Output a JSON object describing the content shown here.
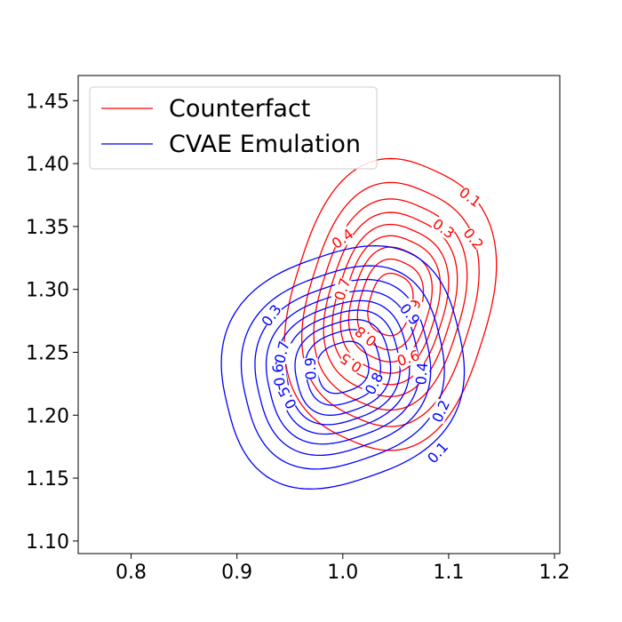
{
  "chart_data": {
    "type": "contour",
    "title": "",
    "xlabel": "",
    "ylabel": "",
    "xlim": [
      0.75,
      1.205
    ],
    "ylim": [
      1.09,
      1.47
    ],
    "x_ticks": [
      0.8,
      0.9,
      1.0,
      1.1,
      1.2
    ],
    "x_tick_labels": [
      "0.8",
      "0.9",
      "1.0",
      "1.1",
      "1.2"
    ],
    "y_ticks": [
      1.1,
      1.15,
      1.2,
      1.25,
      1.3,
      1.35,
      1.4,
      1.45
    ],
    "y_tick_labels": [
      "1.10",
      "1.15",
      "1.20",
      "1.25",
      "1.30",
      "1.35",
      "1.40",
      "1.45"
    ],
    "grid": false,
    "legend_position": "top-left",
    "levels": [
      0.1,
      0.2,
      0.3,
      0.4,
      0.5,
      0.6,
      0.7,
      0.8,
      0.9
    ],
    "series": [
      {
        "name": "Counterfact",
        "color": "#ff0000",
        "center": [
          1.045,
          1.288
        ],
        "sigma": [
          0.044,
          0.052
        ],
        "rho": 0.15,
        "labels": [
          {
            "text": "0.1",
            "x": 1.12,
            "y": 1.373
          },
          {
            "text": "0.2",
            "x": 1.123,
            "y": 1.34
          },
          {
            "text": "0.3",
            "x": 1.095,
            "y": 1.348
          },
          {
            "text": "0.4",
            "x": 1.0,
            "y": 1.34
          },
          {
            "text": "0.7",
            "x": 1.0,
            "y": 1.3
          },
          {
            "text": "0.8",
            "x": 1.022,
            "y": 1.263
          },
          {
            "text": "0.9",
            "x": 1.067,
            "y": 1.283
          },
          {
            "text": "0.6",
            "x": 1.062,
            "y": 1.245
          },
          {
            "text": "0.5",
            "x": 1.008,
            "y": 1.242
          }
        ]
      },
      {
        "name": "CVAE Emulation",
        "color": "#0000ff",
        "center": [
          1.0,
          1.238
        ],
        "sigma": [
          0.052,
          0.043
        ],
        "rho": 0.12,
        "labels": [
          {
            "text": "0.1",
            "x": 1.09,
            "y": 1.17
          },
          {
            "text": "0.2",
            "x": 1.093,
            "y": 1.203
          },
          {
            "text": "0.3",
            "x": 0.933,
            "y": 1.279
          },
          {
            "text": "0.4",
            "x": 1.075,
            "y": 1.233
          },
          {
            "text": "0.5",
            "x": 0.948,
            "y": 1.214
          },
          {
            "text": "0.6",
            "x": 0.94,
            "y": 1.232
          },
          {
            "text": "0.7",
            "x": 0.943,
            "y": 1.25
          },
          {
            "text": "0.8",
            "x": 1.03,
            "y": 1.225
          },
          {
            "text": "0.9",
            "x": 0.97,
            "y": 1.237
          },
          {
            "text": "0.9",
            "x": 1.063,
            "y": 1.28
          }
        ]
      }
    ]
  }
}
